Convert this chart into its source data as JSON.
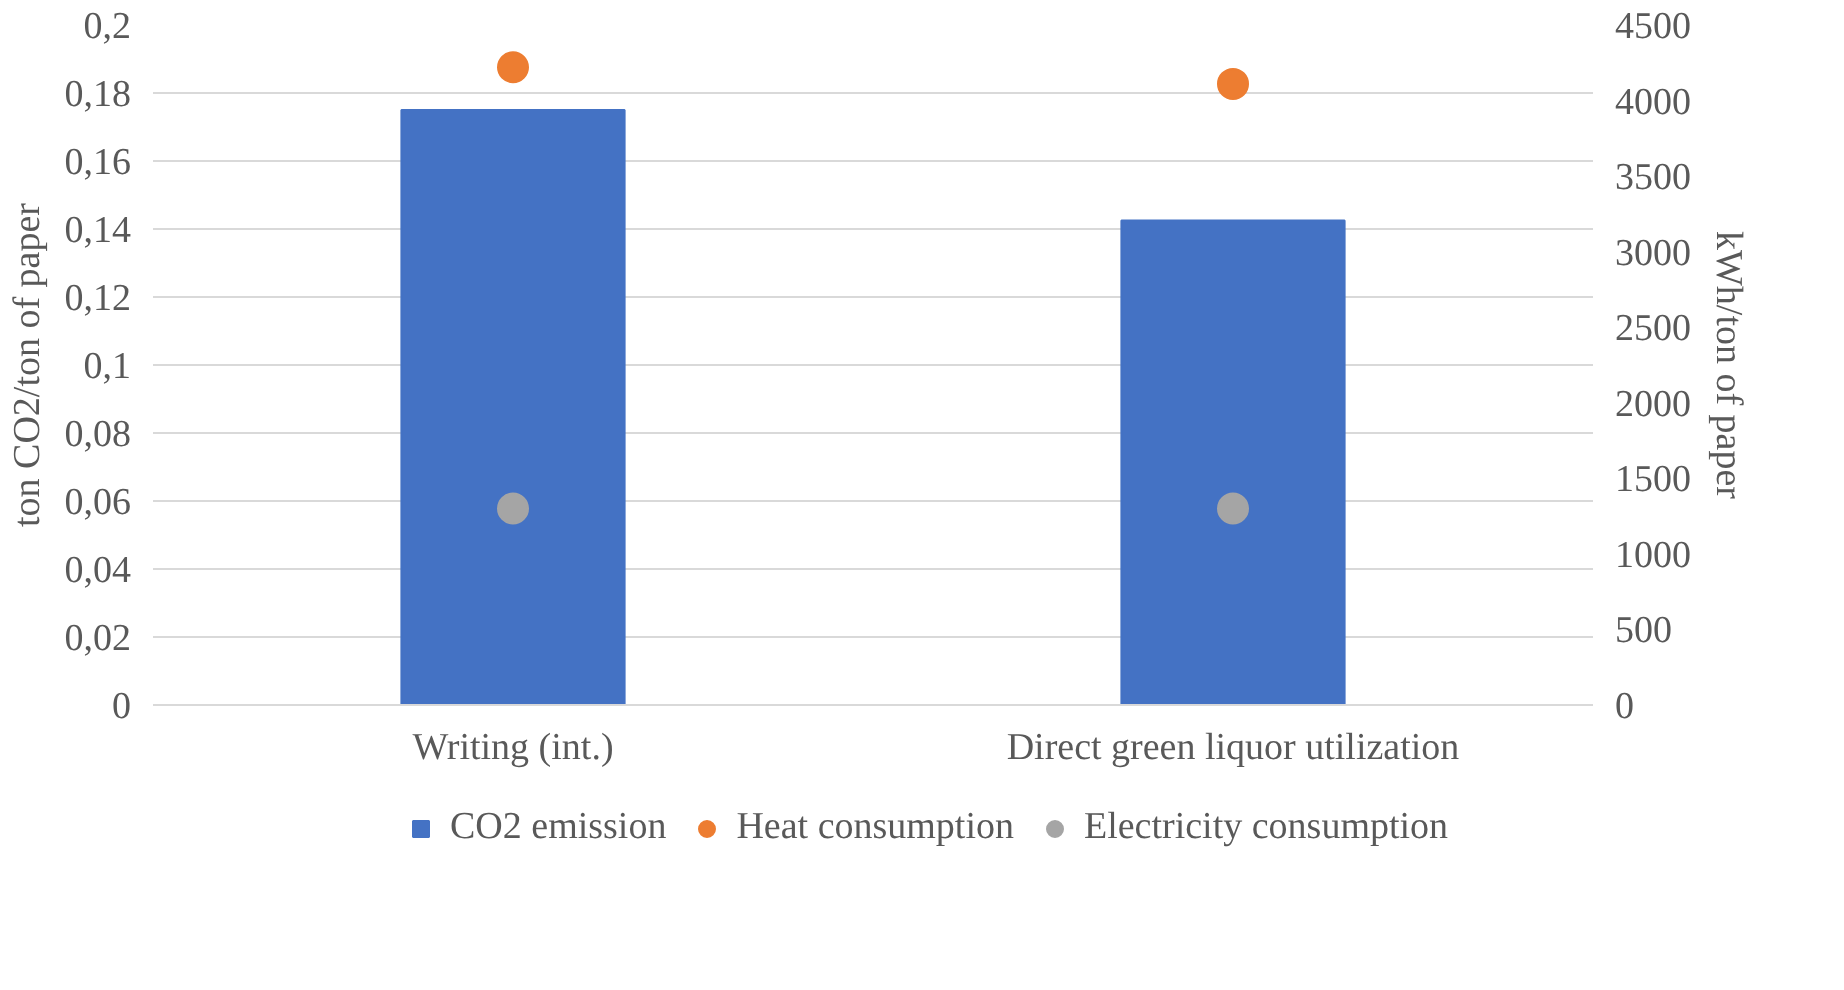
{
  "chart_data": {
    "type": "bar",
    "categories": [
      "Writing (int.)",
      "Direct green liquor utilization"
    ],
    "ylabel": "ton CO2/ton of paper",
    "y2label": "kWh/ton of paper",
    "series": [
      {
        "name": "CO2 emission",
        "color": "#4472c4",
        "values": [
          0.175,
          0.1425
        ]
      },
      {
        "name": "Heat consumption",
        "type": "scatter",
        "axis": "y2",
        "marker": "circle",
        "color": "#ed7d31",
        "values": [
          4220,
          4110
        ]
      },
      {
        "name": "Electricity consumption",
        "type": "scatter",
        "axis": "y2",
        "marker": "circle",
        "color": "#a5a5a5",
        "values": [
          1300,
          1300
        ]
      }
    ],
    "ylim": [
      0,
      0.2
    ],
    "yticks": [
      0,
      {
        "value": 0.02,
        "label": "0,02"
      },
      {
        "value": 0.04,
        "label": "0,04"
      },
      {
        "value": 0.06,
        "label": "0,06"
      },
      {
        "value": 0.08,
        "label": "0,08"
      },
      {
        "value": 0.1,
        "label": "0,1"
      },
      {
        "value": 0.12,
        "label": "0,12"
      },
      {
        "value": 0.14,
        "label": "0,14"
      },
      {
        "value": 0.16,
        "label": "0,16"
      },
      {
        "value": 0.18,
        "label": "0,18"
      },
      {
        "value": 0.2,
        "label": "0,2"
      }
    ],
    "y2lim": [
      0,
      4500
    ],
    "y2ticks": [
      0,
      500,
      1000,
      1500,
      2000,
      2500,
      3000,
      3500,
      4000,
      4500
    ],
    "grid": "y",
    "legend": "bottom"
  }
}
